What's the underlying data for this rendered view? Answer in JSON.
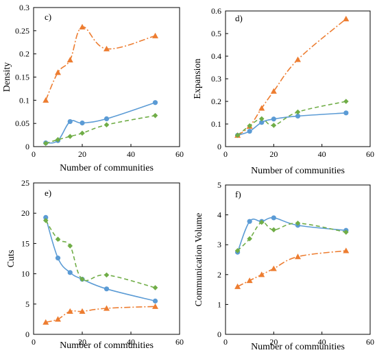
{
  "chart_data": [
    {
      "panel": "c)",
      "type": "line",
      "xlabel": "Number of communities",
      "ylabel": "Density",
      "xlim": [
        0,
        60
      ],
      "ylim": [
        0,
        0.3
      ],
      "xticks": [
        "0",
        "20",
        "40",
        "60"
      ],
      "yticks": [
        "0",
        "0.05",
        "0.1",
        "0.15",
        "0.2",
        "0.25",
        "0.3"
      ],
      "x": [
        5,
        10,
        15,
        20,
        30,
        50
      ],
      "series": [
        {
          "color": "#5b9bd5",
          "style": "solid",
          "marker": "circle",
          "values": [
            0.008,
            0.013,
            0.054,
            0.051,
            0.06,
            0.095
          ]
        },
        {
          "color": "#ed7d31",
          "style": "dashdot",
          "marker": "triangle",
          "values": [
            0.1,
            0.16,
            0.187,
            0.258,
            0.211,
            0.239
          ]
        },
        {
          "color": "#70ad47",
          "style": "dashed",
          "marker": "diamond",
          "values": [
            0.007,
            0.015,
            0.022,
            0.029,
            0.047,
            0.067
          ]
        }
      ]
    },
    {
      "panel": "d)",
      "type": "line",
      "xlabel": "Number of communities",
      "ylabel": "Expansion",
      "xlim": [
        0,
        60
      ],
      "ylim": [
        0,
        0.6
      ],
      "xticks": [
        "0",
        "20",
        "40",
        "60"
      ],
      "yticks": [
        "0",
        "0.1",
        "0.2",
        "0.3",
        "0.4",
        "0.5",
        "0.6"
      ],
      "x": [
        5,
        10,
        15,
        20,
        30,
        50
      ],
      "series": [
        {
          "color": "#5b9bd5",
          "style": "solid",
          "marker": "circle",
          "values": [
            0.05,
            0.068,
            0.107,
            0.122,
            0.135,
            0.149
          ]
        },
        {
          "color": "#ed7d31",
          "style": "dashdot",
          "marker": "triangle",
          "values": [
            0.05,
            0.09,
            0.17,
            0.245,
            0.385,
            0.565
          ]
        },
        {
          "color": "#70ad47",
          "style": "dashed",
          "marker": "diamond",
          "values": [
            0.05,
            0.092,
            0.123,
            0.094,
            0.153,
            0.2
          ]
        }
      ]
    },
    {
      "panel": "e)",
      "type": "line",
      "xlabel": "Number of communities",
      "ylabel": "Cuts",
      "xlim": [
        0,
        60
      ],
      "ylim": [
        0,
        25
      ],
      "xticks": [
        "0",
        "20",
        "40",
        "60"
      ],
      "yticks": [
        "0",
        "5",
        "10",
        "15",
        "20",
        "25"
      ],
      "x": [
        5,
        10,
        15,
        20,
        30,
        50
      ],
      "series": [
        {
          "color": "#5b9bd5",
          "style": "solid",
          "marker": "circle",
          "values": [
            19.3,
            12.6,
            10.2,
            9.1,
            7.5,
            5.5
          ]
        },
        {
          "color": "#ed7d31",
          "style": "dashdot",
          "marker": "triangle",
          "values": [
            2.0,
            2.5,
            3.8,
            3.8,
            4.3,
            4.6
          ]
        },
        {
          "color": "#70ad47",
          "style": "dashed",
          "marker": "diamond",
          "values": [
            18.8,
            15.7,
            14.6,
            9.1,
            9.8,
            7.7
          ]
        }
      ]
    },
    {
      "panel": "f)",
      "type": "line",
      "xlabel": "Number of communities",
      "ylabel": "Communication  Volume",
      "xlim": [
        0,
        60
      ],
      "ylim": [
        0,
        5
      ],
      "xticks": [
        "0",
        "20",
        "40",
        "60"
      ],
      "yticks": [
        "0",
        "1",
        "2",
        "3",
        "4",
        "5"
      ],
      "x": [
        5,
        10,
        15,
        20,
        30,
        50
      ],
      "series": [
        {
          "color": "#5b9bd5",
          "style": "solid",
          "marker": "circle",
          "values": [
            2.75,
            3.78,
            3.78,
            3.9,
            3.65,
            3.48
          ]
        },
        {
          "color": "#ed7d31",
          "style": "dashdot",
          "marker": "triangle",
          "values": [
            1.6,
            1.8,
            2.0,
            2.2,
            2.6,
            2.8
          ]
        },
        {
          "color": "#70ad47",
          "style": "dashed",
          "marker": "diamond",
          "values": [
            2.8,
            3.2,
            3.75,
            3.5,
            3.72,
            3.42
          ]
        }
      ]
    }
  ]
}
